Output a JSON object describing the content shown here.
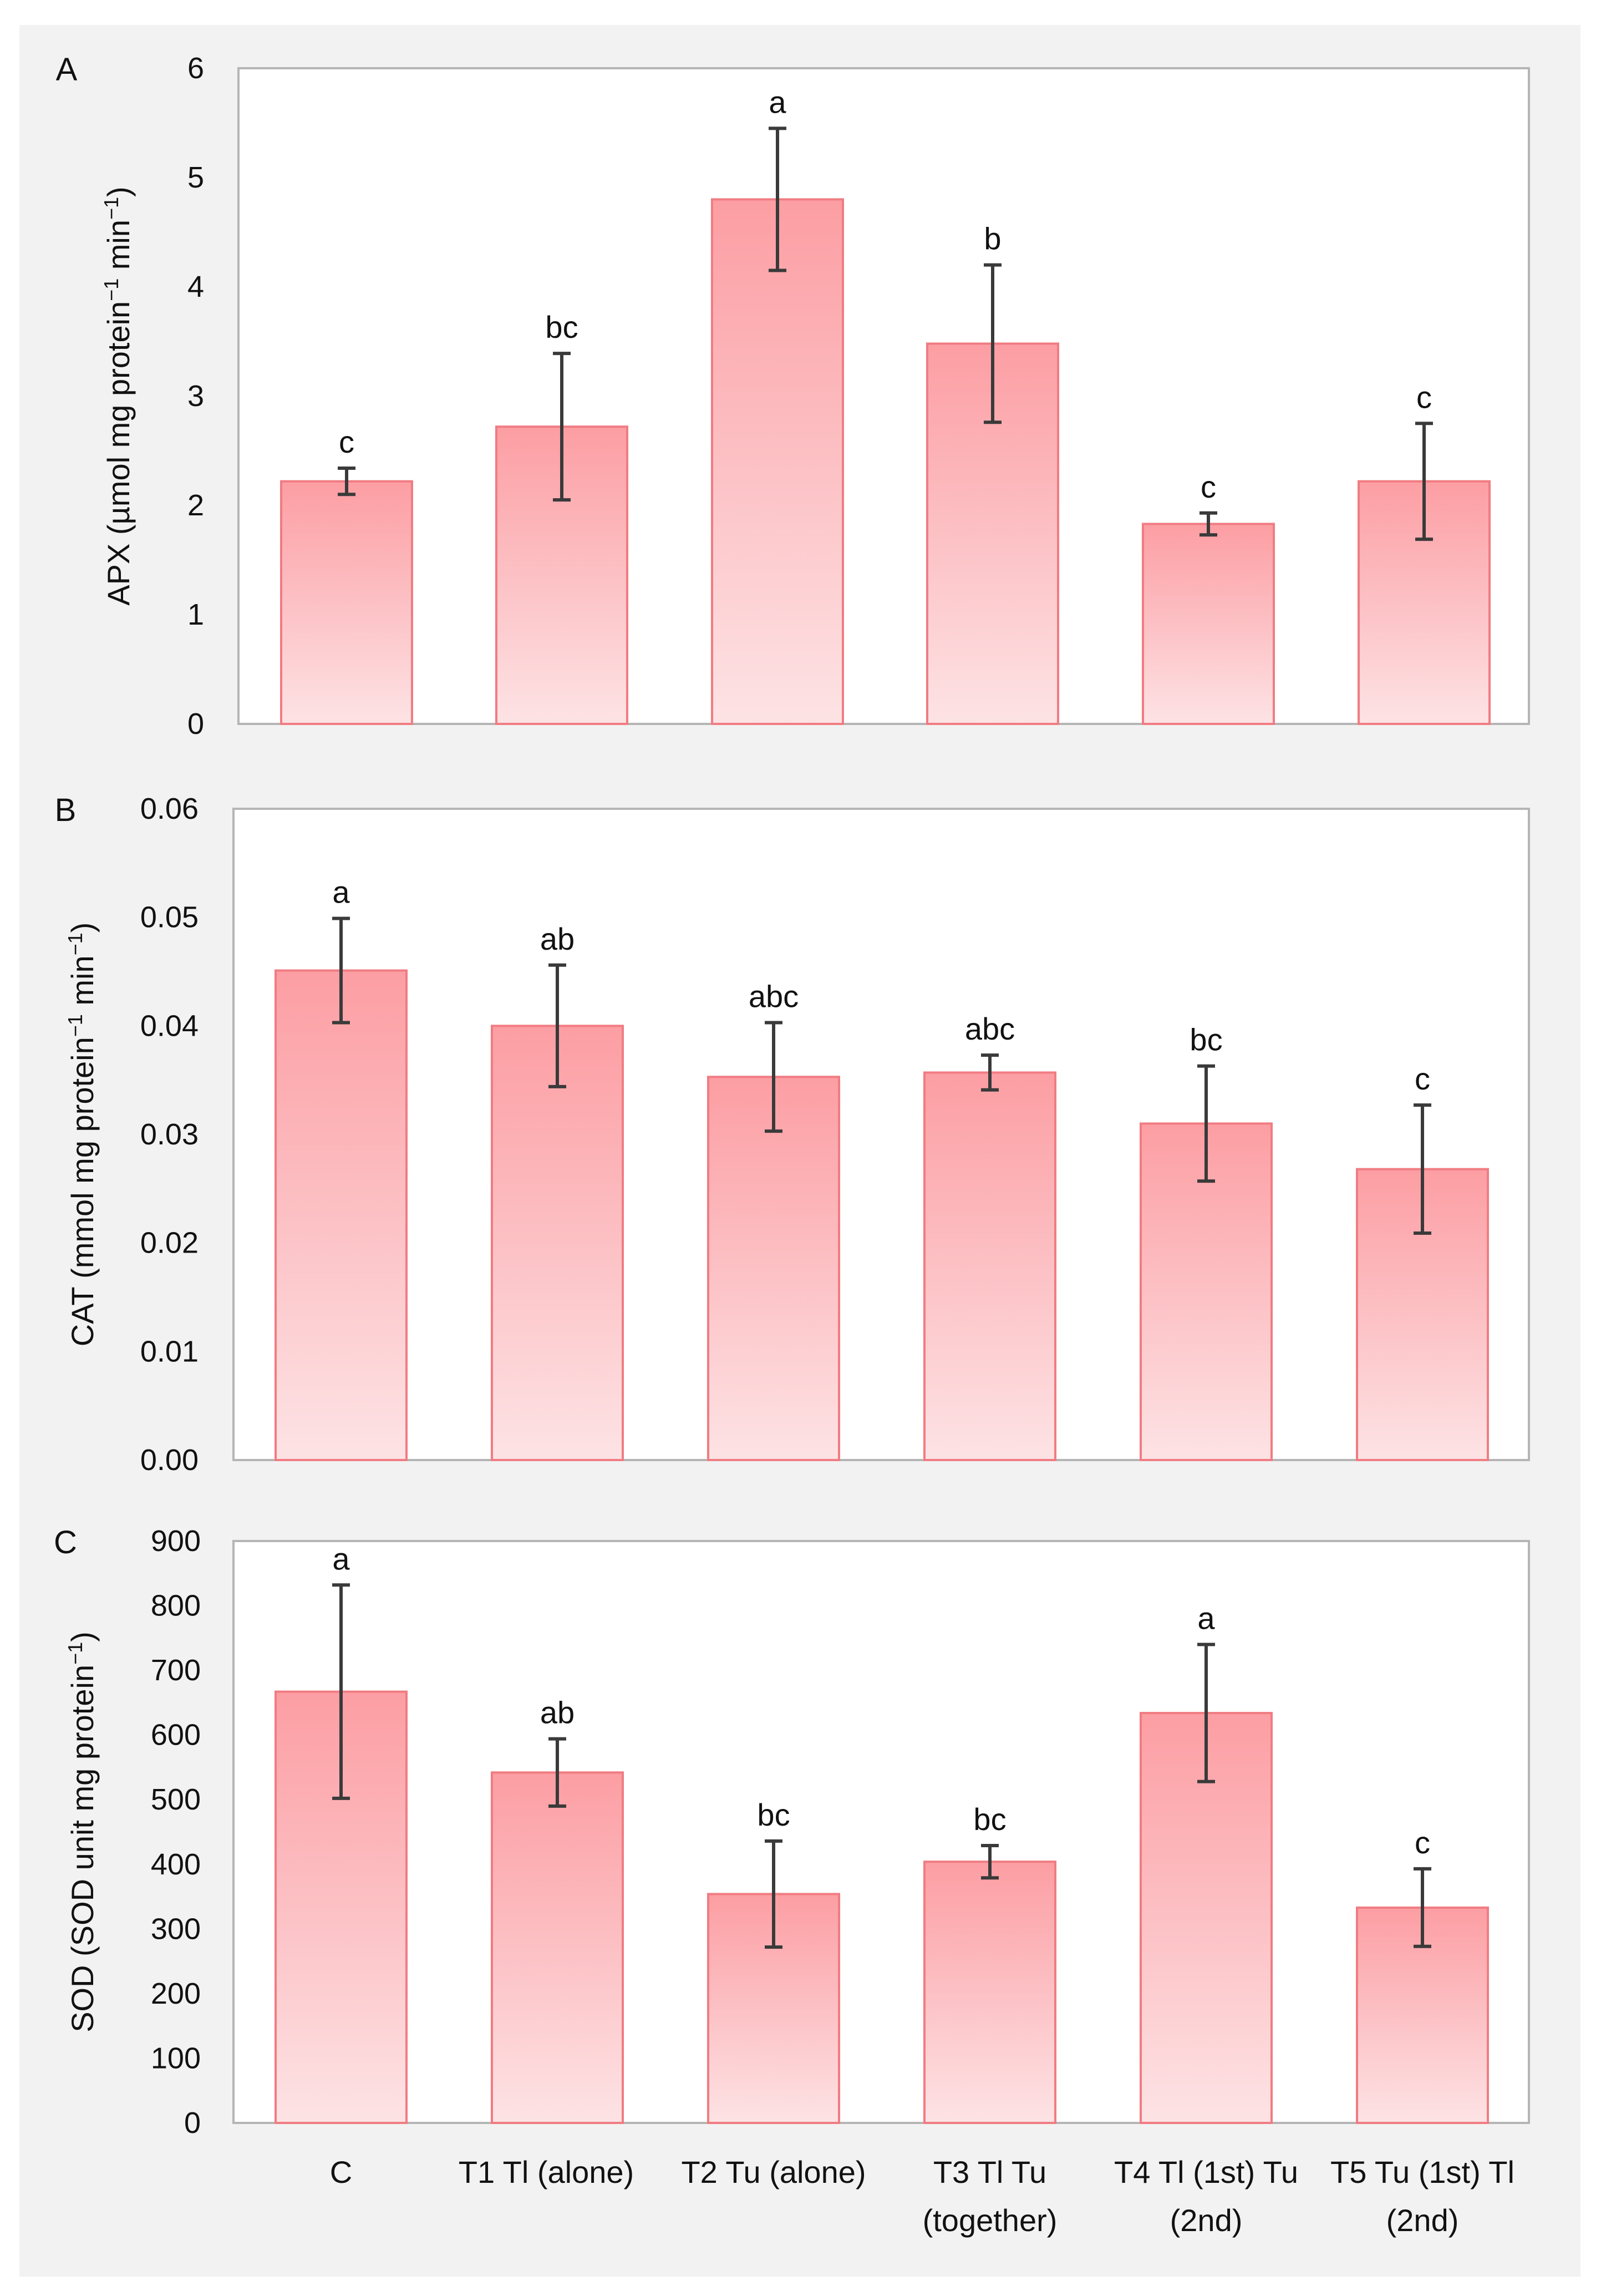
{
  "chart_data": [
    {
      "type": "bar",
      "panel_label": "A",
      "ylabel_parts": [
        {
          "text": "APX (µmol mg protein",
          "sup": false
        },
        {
          "text": "−1",
          "sup": true
        },
        {
          "text": " min",
          "sup": false
        },
        {
          "text": "−1",
          "sup": true
        },
        {
          "text": ")",
          "sup": false
        }
      ],
      "ylim": [
        0,
        6
      ],
      "yticks": [
        "0",
        "1",
        "2",
        "3",
        "4",
        "5",
        "6"
      ],
      "ytick_values": [
        0,
        1,
        2,
        3,
        4,
        5,
        6
      ],
      "values": [
        2.22,
        2.72,
        4.8,
        3.48,
        1.83,
        2.22
      ],
      "errors": [
        0.12,
        0.67,
        0.65,
        0.72,
        0.1,
        0.53
      ],
      "letters": [
        "c",
        "bc",
        "a",
        "b",
        "c",
        "c"
      ]
    },
    {
      "type": "bar",
      "panel_label": "B",
      "ylabel_parts": [
        {
          "text": "CAT (mmol mg protein",
          "sup": false
        },
        {
          "text": "−1",
          "sup": true
        },
        {
          "text": " min",
          "sup": false
        },
        {
          "text": "−1",
          "sup": true
        },
        {
          "text": ")",
          "sup": false
        }
      ],
      "ylim": [
        0,
        0.06
      ],
      "yticks": [
        "0.00",
        "0.01",
        "0.02",
        "0.03",
        "0.04",
        "0.05",
        "0.06"
      ],
      "ytick_values": [
        0,
        0.01,
        0.02,
        0.03,
        0.04,
        0.05,
        0.06
      ],
      "values": [
        0.0451,
        0.04,
        0.0353,
        0.0357,
        0.031,
        0.0268
      ],
      "errors": [
        0.0048,
        0.0056,
        0.005,
        0.0016,
        0.0053,
        0.0059
      ],
      "letters": [
        "a",
        "ab",
        "abc",
        "abc",
        "bc",
        "c"
      ]
    },
    {
      "type": "bar",
      "panel_label": "C",
      "ylabel_parts": [
        {
          "text": "SOD (SOD unit mg protein",
          "sup": false
        },
        {
          "text": "−1",
          "sup": true
        },
        {
          "text": ")",
          "sup": false
        }
      ],
      "ylim": [
        0,
        900
      ],
      "yticks": [
        "0",
        "100",
        "200",
        "300",
        "400",
        "500",
        "600",
        "700",
        "800",
        "900"
      ],
      "ytick_values": [
        0,
        100,
        200,
        300,
        400,
        500,
        600,
        700,
        800,
        900
      ],
      "values": [
        667,
        542,
        354,
        404,
        634,
        333
      ],
      "errors": [
        165,
        52,
        82,
        25,
        106,
        60
      ],
      "letters": [
        "a",
        "ab",
        "bc",
        "bc",
        "a",
        "c"
      ]
    }
  ],
  "categories": [
    {
      "line1": "C",
      "line2": ""
    },
    {
      "line1": "T1 Tl (alone)",
      "line2": ""
    },
    {
      "line1": "T2 Tu (alone)",
      "line2": ""
    },
    {
      "line1": "T3 Tl Tu",
      "line2": "(together)"
    },
    {
      "line1": "T4 Tl (1st) Tu",
      "line2": "(2nd)"
    },
    {
      "line1": "T5 Tu (1st) Tl",
      "line2": "(2nd)"
    }
  ],
  "colors": {
    "bar_top": "#fc9ea3",
    "bar_bottom": "#fde3e5",
    "bar_edge": "#f07c82",
    "error_bar": "#3a3a3a",
    "frame": "#b5b5b5",
    "text": "#111111",
    "panel_bg": "#f2f2f2"
  }
}
